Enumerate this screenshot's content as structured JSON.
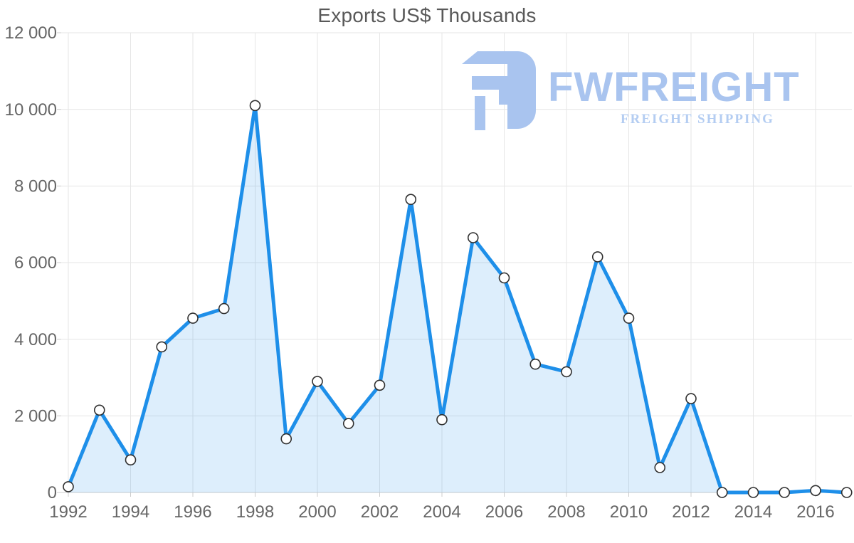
{
  "title": "Exports US$ Thousands",
  "watermark": {
    "brand": "FWFREIGHT",
    "tagline": "FREIGHT SHIPPING"
  },
  "colors": {
    "line": "#1e8fe9",
    "area_fill": "rgba(30,143,233,0.15)",
    "marker_fill": "#ffffff",
    "marker_stroke": "#303030",
    "grid": "#e6e6e6",
    "axis": "#cccccc",
    "label": "#666666",
    "title": "#595959",
    "logo": "#a9c4ef",
    "logo_tagline": "#b4cdf2"
  },
  "chart_data": {
    "type": "area",
    "title": "Exports US$ Thousands",
    "xlabel": "",
    "ylabel": "",
    "x": [
      1992,
      1993,
      1994,
      1995,
      1996,
      1997,
      1998,
      1999,
      2000,
      2001,
      2002,
      2003,
      2004,
      2005,
      2006,
      2007,
      2008,
      2009,
      2010,
      2011,
      2012,
      2013,
      2014,
      2015,
      2016,
      2017
    ],
    "values": [
      150,
      2150,
      850,
      3800,
      4550,
      4800,
      10100,
      1400,
      2900,
      1800,
      2800,
      7650,
      1900,
      6650,
      5600,
      3350,
      3150,
      6150,
      4550,
      650,
      2450,
      0,
      0,
      0,
      50,
      0
    ],
    "ylim": [
      0,
      12000
    ],
    "y_ticks": [
      0,
      2000,
      4000,
      6000,
      8000,
      10000,
      12000
    ],
    "y_tick_labels": [
      "0",
      "2 000",
      "4 000",
      "6 000",
      "8 000",
      "10 000",
      "12 000"
    ],
    "x_tick_years": [
      1992,
      1994,
      1996,
      1998,
      2000,
      2002,
      2004,
      2006,
      2008,
      2010,
      2012,
      2014,
      2016
    ],
    "x_tick_labels": [
      "1992",
      "1994",
      "1996",
      "1998",
      "2000",
      "2002",
      "2004",
      "2006",
      "2008",
      "2010",
      "2012",
      "2014",
      "2016"
    ],
    "grid": true,
    "legend": "none",
    "marker": "circle"
  }
}
